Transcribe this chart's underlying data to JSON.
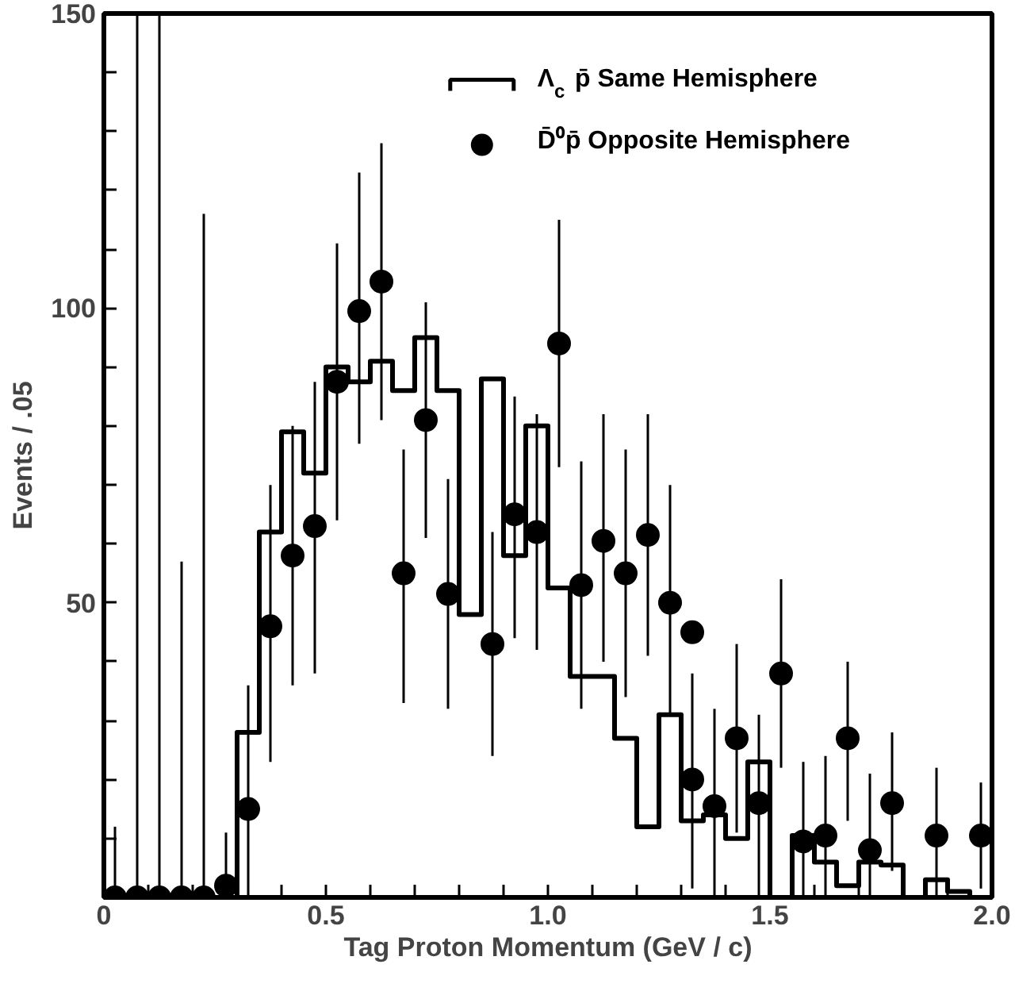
{
  "chart_data": {
    "type": "histogram",
    "xlabel": "Tag Proton Momentum (GeV / c)",
    "ylabel": "Events / .05",
    "xlim": [
      0,
      2.0
    ],
    "ylim": [
      0,
      150
    ],
    "xticks": [
      {
        "value": 0,
        "label": "0"
      },
      {
        "value": 0.1,
        "label": null
      },
      {
        "value": 0.2,
        "label": null
      },
      {
        "value": 0.3,
        "label": null
      },
      {
        "value": 0.4,
        "label": null
      },
      {
        "value": 0.5,
        "label": "0.5"
      },
      {
        "value": 0.6,
        "label": null
      },
      {
        "value": 0.7,
        "label": null
      },
      {
        "value": 0.8,
        "label": null
      },
      {
        "value": 0.9,
        "label": null
      },
      {
        "value": 1.0,
        "label": "1.0"
      },
      {
        "value": 1.1,
        "label": null
      },
      {
        "value": 1.2,
        "label": null
      },
      {
        "value": 1.3,
        "label": null
      },
      {
        "value": 1.4,
        "label": null
      },
      {
        "value": 1.5,
        "label": "1.5"
      },
      {
        "value": 1.6,
        "label": null
      },
      {
        "value": 1.7,
        "label": null
      },
      {
        "value": 1.8,
        "label": null
      },
      {
        "value": 1.9,
        "label": null
      },
      {
        "value": 2.0,
        "label": "2.0"
      }
    ],
    "yticks": [
      {
        "value": 10,
        "label": null
      },
      {
        "value": 20,
        "label": null
      },
      {
        "value": 30,
        "label": null
      },
      {
        "value": 40,
        "label": null
      },
      50,
      {
        "value": 60,
        "label": null
      },
      {
        "value": 70,
        "label": null
      },
      {
        "value": 80,
        "label": null
      },
      {
        "value": 90,
        "label": null
      },
      100,
      {
        "value": 110,
        "label": null
      },
      {
        "value": 120,
        "label": null
      },
      {
        "value": 130,
        "label": null
      },
      {
        "value": 140,
        "label": null
      },
      150
    ],
    "grid": false,
    "legend": "top right",
    "bins": [
      0,
      0.05,
      0.1,
      0.15,
      0.2,
      0.25,
      0.3,
      0.35,
      0.4,
      0.45,
      0.5,
      0.55,
      0.6,
      0.65,
      0.7,
      0.75,
      0.8,
      0.85,
      0.9,
      0.95,
      1.0,
      1.05,
      1.1,
      1.15,
      1.2,
      1.25,
      1.3,
      1.35,
      1.4,
      1.45,
      1.5,
      1.55,
      1.6,
      1.65,
      1.7,
      1.75,
      1.8,
      1.85,
      1.9,
      1.95,
      2.0
    ],
    "series": [
      {
        "name": "Λ$_{c}$ p̄ Same Hemisphere",
        "color": "#000000",
        "values": [
          0,
          0,
          0,
          0,
          0,
          0,
          28,
          62,
          79,
          72,
          90,
          87.5,
          91,
          86,
          95,
          86,
          48,
          88,
          58,
          80,
          52.5,
          37.5,
          37.5,
          27,
          12,
          31,
          13,
          14,
          10,
          23,
          0,
          10.5,
          6,
          2,
          6,
          5.5,
          0,
          3,
          1,
          0
        ]
      },
      {
        "name": "D̄⁰p̄ Opposite Hemisphere",
        "type": "scatter",
        "marker": "circle",
        "color": "#000000",
        "x": [
          0.025,
          0.075,
          0.125,
          0.175,
          0.225,
          0.275,
          0.325,
          0.375,
          0.425,
          0.475,
          0.525,
          0.575,
          0.625,
          0.675,
          0.725,
          0.775,
          0.875,
          0.925,
          0.975,
          1.025,
          1.075,
          1.125,
          1.175,
          1.225,
          1.275,
          1.325,
          1.325,
          1.375,
          1.425,
          1.475,
          1.525,
          1.575,
          1.625,
          1.675,
          1.725,
          1.775,
          1.875,
          1.975
        ],
        "values": [
          0,
          0,
          0,
          0,
          0,
          2,
          15,
          46,
          58,
          63,
          87.5,
          99.5,
          104.5,
          55,
          81,
          51.5,
          43,
          65,
          62,
          94,
          53,
          60.5,
          55,
          61.5,
          50,
          45,
          20,
          15.5,
          27,
          16,
          38,
          9.5,
          10.5,
          27,
          8,
          16,
          10.5,
          10.5
        ],
        "errors": [
          [
            0,
            12
          ],
          [
            0,
            150
          ],
          [
            0,
            150
          ],
          [
            0,
            57
          ],
          [
            0,
            116
          ],
          [
            0,
            11
          ],
          [
            0,
            36
          ],
          [
            23,
            70
          ],
          [
            36,
            80
          ],
          [
            38,
            87.5
          ],
          [
            64,
            111
          ],
          [
            77,
            123
          ],
          [
            81,
            128
          ],
          [
            33,
            76
          ],
          [
            61,
            101
          ],
          [
            32,
            71
          ],
          [
            24,
            62
          ],
          [
            44,
            85
          ],
          [
            42,
            82
          ],
          [
            73,
            115
          ],
          [
            32,
            74
          ],
          [
            40,
            82
          ],
          [
            34,
            76
          ],
          [
            41,
            82
          ],
          [
            31,
            70
          ],
          null,
          [
            1.5,
            38
          ],
          [
            0,
            32
          ],
          [
            11,
            43
          ],
          [
            0,
            31
          ],
          [
            22,
            54
          ],
          [
            0,
            23
          ],
          [
            0,
            24
          ],
          [
            13,
            40
          ],
          [
            0,
            21
          ],
          [
            4.5,
            28
          ],
          [
            0,
            22
          ],
          [
            1.5,
            19.5
          ]
        ]
      }
    ]
  }
}
